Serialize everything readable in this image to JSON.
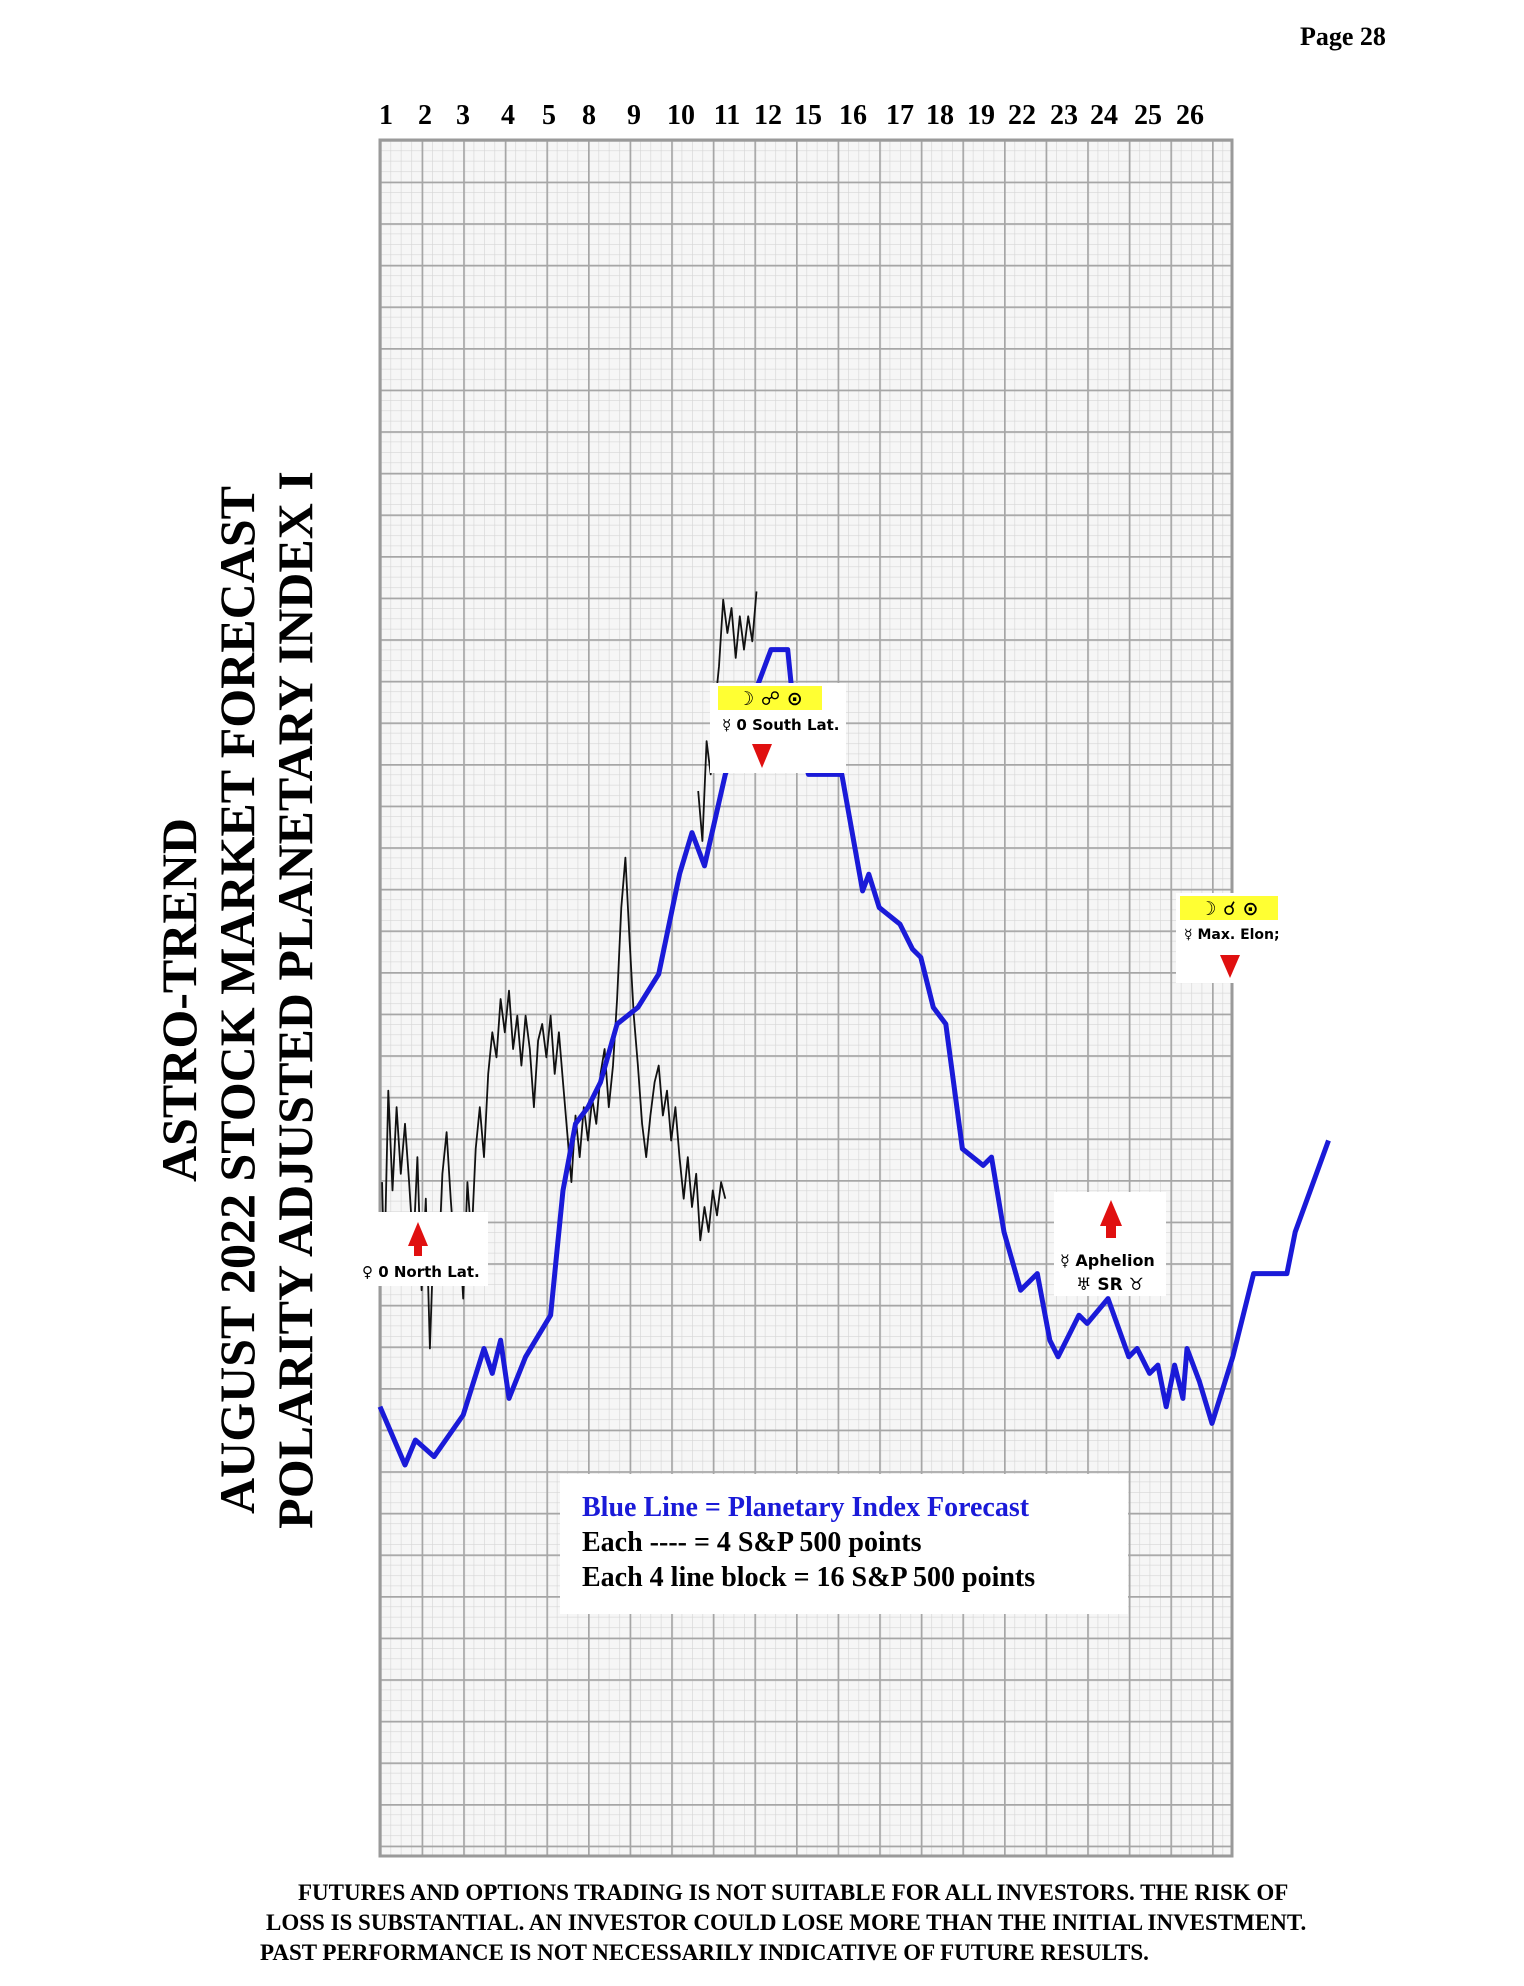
{
  "page": {
    "number_label": "Page  28"
  },
  "title": {
    "line1": "ASTRO-TREND",
    "line2": "AUGUST 2022  STOCK MARKET FORECAST",
    "line3": "POLARITY ADJUSTED PLANETARY INDEX I"
  },
  "chart_data": {
    "type": "line",
    "x_tick_labels": [
      "1",
      "2",
      "3",
      "4",
      "5",
      "8",
      "9",
      "10",
      "11",
      "12",
      "15",
      "16",
      "17",
      "18",
      "19",
      "22",
      "23",
      "24",
      "25",
      "26"
    ],
    "legend": {
      "line1": "Blue Line = Planetary Index Forecast",
      "line2": "Each ---- =   4 S&P 500 points",
      "line3": "Each 4 line block =  16  S&P 500 points"
    },
    "series": [
      {
        "colour": "#1a1ad8",
        "points": [
          [
            0,
            10.8
          ],
          [
            0.6,
            9.4
          ],
          [
            0.85,
            10.0
          ],
          [
            1.3,
            9.6
          ],
          [
            2.0,
            10.6
          ],
          [
            2.5,
            12.2
          ],
          [
            2.7,
            11.6
          ],
          [
            2.9,
            12.4
          ],
          [
            3.1,
            11.0
          ],
          [
            3.5,
            12.0
          ],
          [
            4.1,
            13.0
          ],
          [
            4.4,
            16.0
          ],
          [
            4.7,
            17.6
          ],
          [
            5.0,
            18.0
          ],
          [
            5.3,
            18.6
          ],
          [
            5.7,
            20.0
          ],
          [
            6.2,
            20.4
          ],
          [
            6.7,
            21.2
          ],
          [
            7.2,
            23.6
          ],
          [
            7.5,
            24.6
          ],
          [
            7.8,
            23.8
          ],
          [
            8.3,
            26.0
          ],
          [
            8.8,
            27.4
          ],
          [
            9.4,
            29.0
          ],
          [
            9.8,
            29.0
          ],
          [
            10.0,
            27.0
          ],
          [
            10.3,
            26.0
          ],
          [
            10.7,
            26.0
          ],
          [
            11.1,
            26.0
          ],
          [
            11.6,
            23.2
          ],
          [
            11.75,
            23.6
          ],
          [
            12.0,
            22.8
          ],
          [
            12.5,
            22.4
          ],
          [
            12.8,
            21.8
          ],
          [
            13.0,
            21.6
          ],
          [
            13.3,
            20.4
          ],
          [
            13.6,
            20.0
          ],
          [
            14.0,
            17.0
          ],
          [
            14.5,
            16.6
          ],
          [
            14.7,
            16.8
          ],
          [
            15.0,
            15.0
          ],
          [
            15.4,
            13.6
          ],
          [
            15.8,
            14.0
          ],
          [
            16.1,
            12.4
          ],
          [
            16.3,
            12.0
          ],
          [
            16.5,
            12.4
          ],
          [
            16.8,
            13.0
          ],
          [
            17.0,
            12.8
          ],
          [
            17.5,
            13.4
          ],
          [
            18.0,
            12.0
          ],
          [
            18.2,
            12.2
          ],
          [
            18.5,
            11.6
          ],
          [
            18.7,
            11.8
          ],
          [
            18.9,
            10.8
          ],
          [
            19.1,
            11.8
          ],
          [
            19.3,
            11.0
          ],
          [
            19.4,
            12.2
          ],
          [
            19.7,
            11.4
          ],
          [
            20.0,
            10.4
          ],
          [
            20.5,
            12.0
          ],
          [
            21.0,
            14.0
          ],
          [
            21.5,
            14.0
          ],
          [
            21.8,
            14.0
          ],
          [
            22.0,
            15.0
          ],
          [
            22.8,
            17.2
          ]
        ]
      },
      {
        "colour": "#111111",
        "points": [
          [
            0.05,
            16.2
          ],
          [
            0.1,
            14.0
          ],
          [
            0.2,
            18.4
          ],
          [
            0.3,
            16.0
          ],
          [
            0.4,
            18.0
          ],
          [
            0.5,
            16.4
          ],
          [
            0.6,
            17.6
          ],
          [
            0.7,
            16.2
          ],
          [
            0.8,
            14.6
          ],
          [
            0.9,
            16.8
          ],
          [
            1.0,
            13.6
          ],
          [
            1.1,
            15.8
          ],
          [
            1.2,
            12.2
          ],
          [
            1.3,
            15.2
          ],
          [
            1.4,
            14.0
          ],
          [
            1.5,
            16.4
          ],
          [
            1.6,
            17.4
          ],
          [
            1.7,
            15.8
          ],
          [
            1.8,
            14.4
          ],
          [
            1.9,
            15.2
          ],
          [
            2.0,
            13.4
          ],
          [
            2.1,
            16.2
          ],
          [
            2.2,
            14.8
          ],
          [
            2.3,
            17.0
          ],
          [
            2.4,
            18.0
          ],
          [
            2.5,
            16.8
          ],
          [
            2.6,
            18.8
          ],
          [
            2.7,
            19.8
          ],
          [
            2.8,
            19.2
          ],
          [
            2.9,
            20.6
          ],
          [
            3.0,
            19.8
          ],
          [
            3.1,
            20.8
          ],
          [
            3.2,
            19.4
          ],
          [
            3.3,
            20.2
          ],
          [
            3.4,
            19.0
          ],
          [
            3.5,
            20.2
          ],
          [
            3.6,
            19.4
          ],
          [
            3.7,
            18.0
          ],
          [
            3.8,
            19.6
          ],
          [
            3.9,
            20.0
          ],
          [
            4.0,
            19.2
          ],
          [
            4.1,
            20.2
          ],
          [
            4.2,
            18.8
          ],
          [
            4.3,
            19.8
          ],
          [
            4.4,
            18.6
          ],
          [
            4.5,
            17.4
          ],
          [
            4.6,
            16.2
          ],
          [
            4.7,
            17.8
          ],
          [
            4.8,
            16.8
          ],
          [
            4.9,
            18.0
          ],
          [
            5.0,
            17.2
          ],
          [
            5.1,
            18.2
          ],
          [
            5.2,
            17.6
          ],
          [
            5.3,
            18.8
          ],
          [
            5.4,
            19.4
          ],
          [
            5.5,
            18.0
          ],
          [
            5.6,
            19.0
          ],
          [
            5.7,
            20.6
          ],
          [
            5.8,
            22.8
          ],
          [
            5.9,
            24.0
          ],
          [
            6.0,
            22.0
          ],
          [
            6.1,
            20.2
          ],
          [
            6.2,
            19.0
          ],
          [
            6.3,
            17.6
          ],
          [
            6.4,
            16.8
          ],
          [
            6.5,
            17.8
          ],
          [
            6.6,
            18.6
          ],
          [
            6.7,
            19.0
          ],
          [
            6.8,
            17.8
          ],
          [
            6.9,
            18.4
          ],
          [
            7.0,
            17.2
          ],
          [
            7.1,
            18.0
          ],
          [
            7.2,
            16.8
          ],
          [
            7.3,
            15.8
          ],
          [
            7.4,
            16.8
          ],
          [
            7.5,
            15.6
          ],
          [
            7.6,
            16.4
          ],
          [
            7.7,
            14.8
          ],
          [
            7.8,
            15.6
          ],
          [
            7.9,
            15.0
          ],
          [
            8.0,
            16.0
          ],
          [
            8.1,
            15.4
          ],
          [
            8.2,
            16.2
          ],
          [
            8.3,
            15.8
          ]
        ]
      },
      {
        "colour": "#111111",
        "points": [
          [
            7.65,
            25.6
          ],
          [
            7.75,
            24.4
          ],
          [
            7.85,
            26.8
          ],
          [
            7.95,
            26.0
          ],
          [
            8.05,
            27.6
          ],
          [
            8.15,
            28.6
          ],
          [
            8.25,
            30.2
          ],
          [
            8.35,
            29.4
          ],
          [
            8.45,
            30.0
          ],
          [
            8.55,
            28.8
          ],
          [
            8.65,
            29.8
          ],
          [
            8.75,
            29.0
          ],
          [
            8.85,
            29.8
          ],
          [
            8.95,
            29.2
          ],
          [
            9.05,
            30.4
          ]
        ]
      }
    ],
    "annotations": [
      {
        "glyphs": "☽ ☍ ⊙",
        "label": "☿ 0 South Lat."
      },
      {
        "glyphs": "☽ ☌ ⊙",
        "label": "☿ Max. Elon;"
      },
      {
        "label": "♀ 0 North Lat."
      },
      {
        "label": "☿ Aphelion",
        "glyphs": "♅ SR ♉"
      }
    ]
  },
  "disclaimer": {
    "line1": "FUTURES AND OPTIONS TRADING IS NOT SUITABLE FOR ALL INVESTORS.  THE RISK OF",
    "line2": "LOSS IS SUBSTANTIAL.  AN INVESTOR COULD LOSE MORE THAN THE INITIAL INVESTMENT.",
    "line3": "PAST PERFORMANCE IS NOT NECESSARILY INDICATIVE OF FUTURE RESULTS."
  }
}
